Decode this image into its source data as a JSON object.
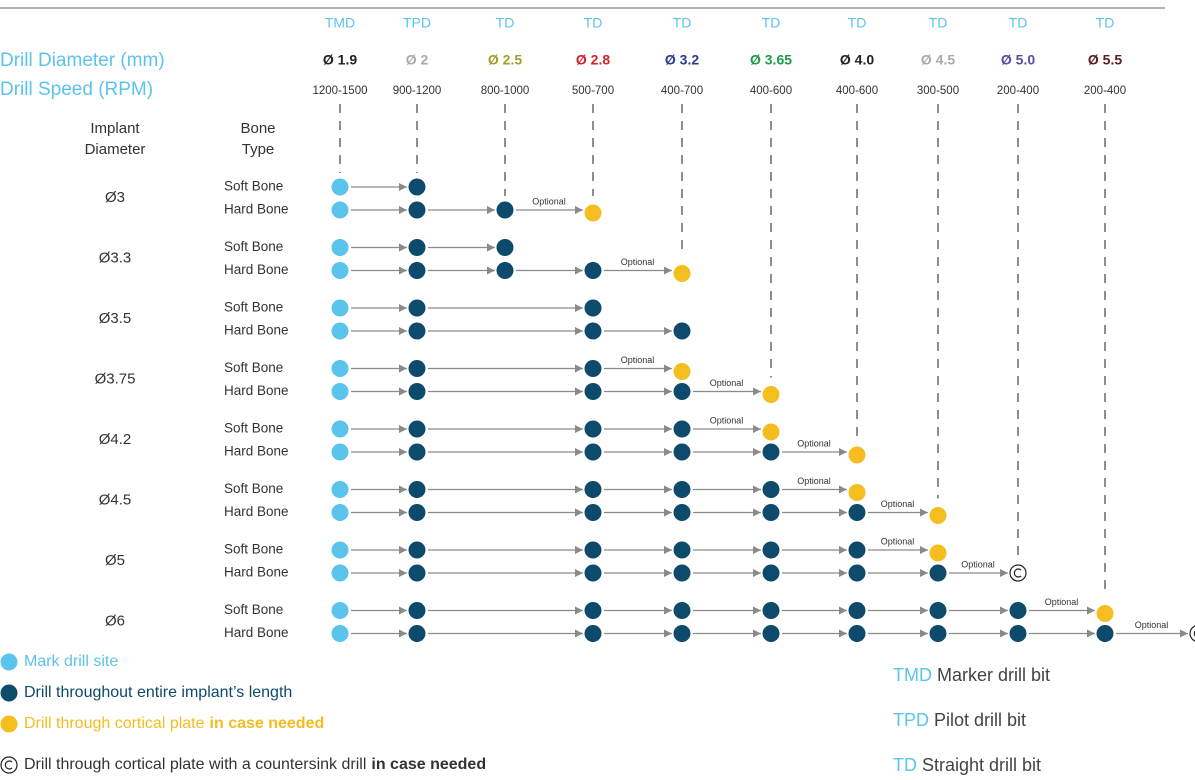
{
  "header": {
    "diameter_title": "Drill Diameter (mm)",
    "speed_title": "Drill Speed (RPM)",
    "implant_title": [
      "Implant",
      "Diameter"
    ],
    "bone_title": [
      "Bone",
      "Type"
    ]
  },
  "drills": [
    {
      "type": "TMD",
      "diameter": "Ø 1.9",
      "speed": "1200-1500",
      "color": "#222222"
    },
    {
      "type": "TPD",
      "diameter": "Ø 2",
      "speed": "900-1200",
      "color": "#aaaaaa"
    },
    {
      "type": "TD",
      "diameter": "Ø 2.5",
      "speed": "800-1000",
      "color": "#a59d2c"
    },
    {
      "type": "TD",
      "diameter": "Ø 2.8",
      "speed": "500-700",
      "color": "#d2232a"
    },
    {
      "type": "TD",
      "diameter": "Ø 3.2",
      "speed": "400-700",
      "color": "#2b3990"
    },
    {
      "type": "TD",
      "diameter": "Ø 3.65",
      "speed": "400-600",
      "color": "#1f9a48"
    },
    {
      "type": "TD",
      "diameter": "Ø 4.0",
      "speed": "400-600",
      "color": "#222222"
    },
    {
      "type": "TD",
      "diameter": "Ø 4.5",
      "speed": "300-500",
      "color": "#aaaaaa"
    },
    {
      "type": "TD",
      "diameter": "Ø 5.0",
      "speed": "200-400",
      "color": "#5b4a9e"
    },
    {
      "type": "TD",
      "diameter": "Ø 5.5",
      "speed": "200-400",
      "color": "#5a1e1e"
    }
  ],
  "bone_labels": {
    "soft": "Soft Bone",
    "hard": "Hard Bone"
  },
  "optional_label": "Optional",
  "implants": [
    {
      "label": "Ø3",
      "soft": [
        "m",
        "d"
      ],
      "hard": [
        "m",
        "d",
        "d",
        "o"
      ]
    },
    {
      "label": "Ø3.3",
      "soft": [
        "m",
        "d",
        "d"
      ],
      "hard": [
        "m",
        "d",
        "d",
        "d",
        "o"
      ]
    },
    {
      "label": "Ø3.5",
      "soft": [
        "m",
        "d",
        null,
        "d"
      ],
      "hard": [
        "m",
        "d",
        null,
        "d",
        "d"
      ]
    },
    {
      "label": "Ø3.75",
      "soft": [
        "m",
        "d",
        null,
        "d",
        "o"
      ],
      "hard": [
        "m",
        "d",
        null,
        "d",
        "d",
        "o"
      ]
    },
    {
      "label": "Ø4.2",
      "soft": [
        "m",
        "d",
        null,
        "d",
        "d",
        "o"
      ],
      "hard": [
        "m",
        "d",
        null,
        "d",
        "d",
        "d",
        "o"
      ]
    },
    {
      "label": "Ø4.5",
      "soft": [
        "m",
        "d",
        null,
        "d",
        "d",
        "d",
        "o"
      ],
      "hard": [
        "m",
        "d",
        null,
        "d",
        "d",
        "d",
        "d",
        "o"
      ]
    },
    {
      "label": "Ø5",
      "soft": [
        "m",
        "d",
        null,
        "d",
        "d",
        "d",
        "d",
        "o"
      ],
      "hard": [
        "m",
        "d",
        null,
        "d",
        "d",
        "d",
        "d",
        "d",
        "c"
      ]
    },
    {
      "label": "Ø6",
      "soft": [
        "m",
        "d",
        null,
        "d",
        "d",
        "d",
        "d",
        "d",
        "d",
        "o"
      ],
      "hard": [
        "m",
        "d",
        null,
        "d",
        "d",
        "d",
        "d",
        "d",
        "d",
        "d",
        "c"
      ]
    }
  ],
  "legend": [
    {
      "kind": "m",
      "text": "Mark drill site"
    },
    {
      "kind": "d",
      "text": "Drill throughout entire implant’s length"
    },
    {
      "kind": "o",
      "text": "Drill through cortical plate",
      "bold": "in case needed"
    },
    {
      "kind": "c",
      "text": "Drill through cortical plate with a countersink drill",
      "bold": "in case needed"
    }
  ],
  "key": [
    {
      "abbr": "TMD",
      "text": "Marker drill bit"
    },
    {
      "abbr": "TPD",
      "text": "Pilot drill bit"
    },
    {
      "abbr": "TD",
      "text": "Straight drill bit"
    }
  ]
}
